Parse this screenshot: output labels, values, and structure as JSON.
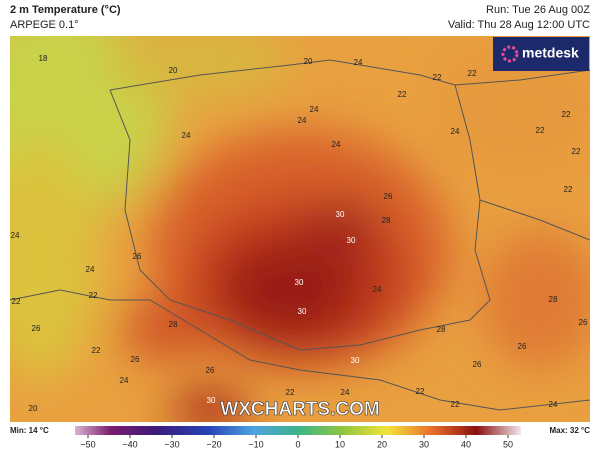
{
  "header": {
    "title": "2 m Temperature (°C)",
    "subtitle": "ARPEGE 0.1°",
    "run": "Run: Tue 26 Aug 00Z",
    "valid": "Valid: Thu 28 Aug 12:00 UTC"
  },
  "logo": "metdesk",
  "watermark": "WXCHARTS.COM",
  "map": {
    "labels": [
      "18",
      "20",
      "20",
      "24",
      "22",
      "22",
      "22",
      "24",
      "24",
      "24",
      "24",
      "22",
      "22",
      "22",
      "24",
      "22",
      "24",
      "24",
      "26",
      "28",
      "30",
      "30",
      "26",
      "22",
      "22",
      "28",
      "26",
      "30",
      "30",
      "28",
      "28",
      "26",
      "26",
      "30",
      "22",
      "24",
      "26",
      "22",
      "24",
      "22",
      "22",
      "30",
      "20",
      "26",
      "24",
      "24",
      "26"
    ]
  },
  "colorbar": {
    "min": "Min: 14 °C",
    "max": "Max: 32 °C",
    "ticks": [
      {
        "value": -50,
        "label": "−50"
      },
      {
        "value": -40,
        "label": "−40"
      },
      {
        "value": -30,
        "label": "−30"
      },
      {
        "value": -20,
        "label": "−20"
      },
      {
        "value": -10,
        "label": "−10"
      },
      0,
      10,
      20,
      30,
      40,
      50
    ]
  }
}
